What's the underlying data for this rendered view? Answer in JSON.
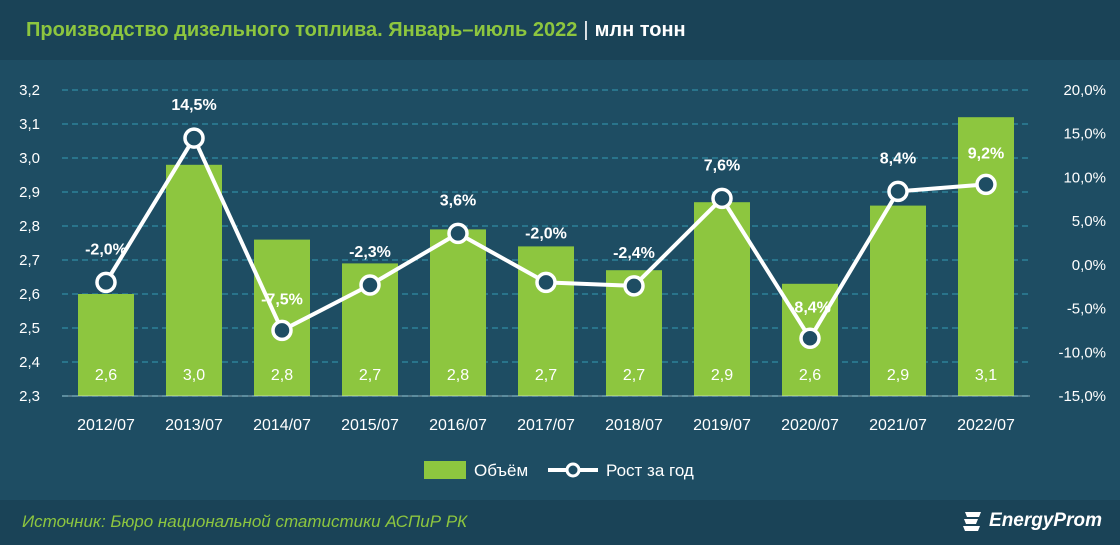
{
  "header": {
    "title": "Производство дизельного топлива. Январь–июль 2022",
    "separator": "|",
    "unit": "млн тонн"
  },
  "footer": {
    "source": "Источник: Бюро национальной статистики АСПиР РК",
    "brand": "EnergyProm"
  },
  "colors": {
    "bar": "#8dc63f",
    "line": "#ffffff",
    "grid": "#3ab0c8",
    "title_accent": "#8dc63f"
  },
  "chart_data": {
    "type": "bar",
    "categories": [
      "2012/07",
      "2013/07",
      "2014/07",
      "2015/07",
      "2016/07",
      "2017/07",
      "2018/07",
      "2019/07",
      "2020/07",
      "2021/07",
      "2022/07"
    ],
    "series": [
      {
        "name": "Объём",
        "type": "bar",
        "axis": "left",
        "values": [
          2.6,
          2.98,
          2.76,
          2.69,
          2.79,
          2.74,
          2.67,
          2.87,
          2.63,
          2.86,
          3.12
        ],
        "labels": [
          "2,6",
          "3,0",
          "2,8",
          "2,7",
          "2,8",
          "2,7",
          "2,7",
          "2,9",
          "2,6",
          "2,9",
          "3,1"
        ]
      },
      {
        "name": "Рост за год",
        "type": "line",
        "axis": "right",
        "values": [
          -2.0,
          14.5,
          -7.5,
          -2.3,
          3.6,
          -2.0,
          -2.4,
          7.6,
          -8.4,
          8.4,
          9.2
        ],
        "labels": [
          "-2,0%",
          "14,5%",
          "-7,5%",
          "-2,3%",
          "3,6%",
          "-2,0%",
          "-2,4%",
          "7,6%",
          "-8,4%",
          "8,4%",
          "9,2%"
        ]
      }
    ],
    "y_left": {
      "min": 2.3,
      "max": 3.2,
      "ticks": [
        2.3,
        2.4,
        2.5,
        2.6,
        2.7,
        2.8,
        2.9,
        3.0,
        3.1,
        3.2
      ],
      "tick_labels": [
        "2,3",
        "2,4",
        "2,5",
        "2,6",
        "2,7",
        "2,8",
        "2,9",
        "3,0",
        "3,1",
        "3,2"
      ]
    },
    "y_right": {
      "min": -15,
      "max": 20,
      "ticks": [
        -15,
        -10,
        -5,
        0,
        5,
        10,
        15,
        20
      ],
      "tick_labels": [
        "-15,0%",
        "-10,0%",
        "-5,0%",
        "0,0%",
        "5,0%",
        "10,0%",
        "15,0%",
        "20,0%"
      ]
    },
    "legend": [
      "Объём",
      "Рост за год"
    ],
    "legend_position": "bottom-center",
    "grid": true
  }
}
